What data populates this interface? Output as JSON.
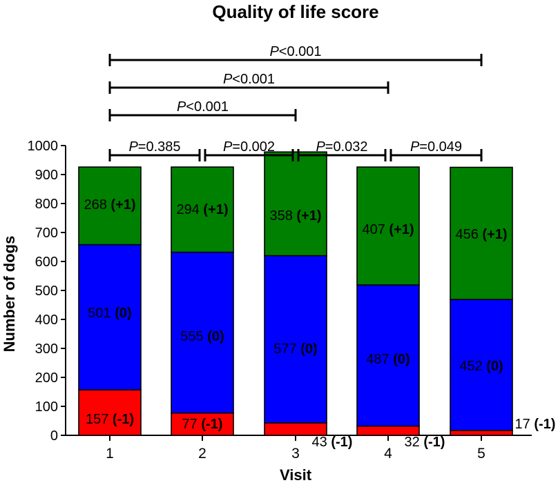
{
  "chart_data": {
    "type": "bar",
    "stacked": true,
    "title": "Quality of life score",
    "xlabel": "Visit",
    "ylabel": "Number of dogs",
    "ylim": [
      0,
      1000
    ],
    "yticks": [
      0,
      100,
      200,
      300,
      400,
      500,
      600,
      700,
      800,
      900,
      1000
    ],
    "categories": [
      "1",
      "2",
      "3",
      "4",
      "5"
    ],
    "series": [
      {
        "name": "-1",
        "color": "#ff0000",
        "values": [
          157,
          77,
          43,
          32,
          17
        ],
        "labels": [
          "157",
          "77",
          "43",
          "32",
          "17"
        ],
        "suffix": "(-1)"
      },
      {
        "name": "0",
        "color": "#0000ff",
        "values": [
          501,
          555,
          577,
          487,
          452
        ],
        "labels": [
          "501",
          "555",
          "577",
          "487",
          "452"
        ],
        "suffix": "(0)"
      },
      {
        "name": "+1",
        "color": "#008000",
        "values": [
          268,
          294,
          358,
          407,
          456
        ],
        "labels": [
          "268",
          "294",
          "358",
          "407",
          "456"
        ],
        "suffix": "(+1)"
      }
    ],
    "comparisons": [
      {
        "from": 1,
        "to": 2,
        "p_prefix": "P",
        "p_rest": "=0.385"
      },
      {
        "from": 2,
        "to": 3,
        "p_prefix": "P",
        "p_rest": "=0.002"
      },
      {
        "from": 3,
        "to": 4,
        "p_prefix": "P",
        "p_rest": "=0.032"
      },
      {
        "from": 4,
        "to": 5,
        "p_prefix": "P",
        "p_rest": "=0.049"
      },
      {
        "from": 1,
        "to": 3,
        "p_prefix": "P",
        "p_rest": "<0.001"
      },
      {
        "from": 1,
        "to": 4,
        "p_prefix": "P",
        "p_rest": "<0.001"
      },
      {
        "from": 1,
        "to": 5,
        "p_prefix": "P",
        "p_rest": "<0.001"
      }
    ]
  }
}
